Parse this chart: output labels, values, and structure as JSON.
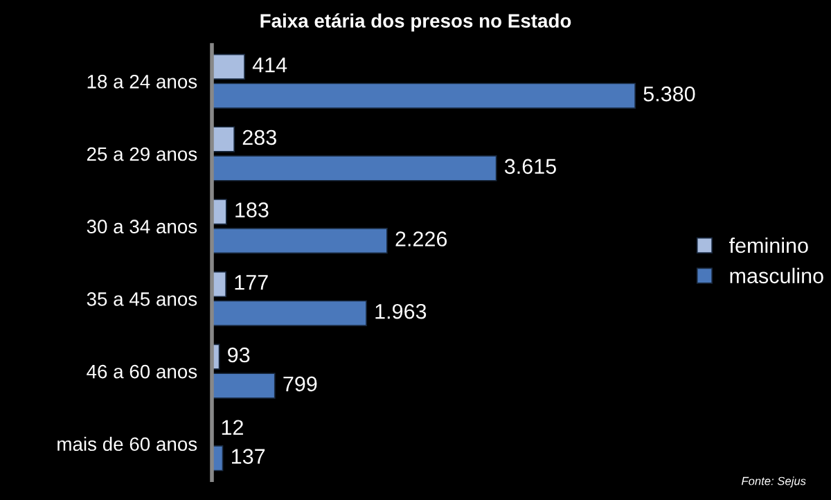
{
  "chart_data": {
    "type": "bar",
    "orientation": "horizontal",
    "title": "Faixa etária dos presos no Estado",
    "categories": [
      "18 a 24 anos",
      "25 a 29 anos",
      "30 a 34 anos",
      "35 a 45 anos",
      "46 a 60 anos",
      "mais de 60 anos"
    ],
    "series": [
      {
        "name": "feminino",
        "color": "#a9bde0",
        "values": [
          414,
          283,
          183,
          177,
          93,
          12
        ],
        "value_labels": [
          "414",
          "283",
          "183",
          "177",
          "93",
          "12"
        ]
      },
      {
        "name": "masculino",
        "color": "#4a78bb",
        "values": [
          5380,
          3615,
          2226,
          1963,
          799,
          137
        ],
        "value_labels": [
          "5.380",
          "3.615",
          "2.226",
          "1.963",
          "799",
          "137"
        ]
      }
    ],
    "tick_labels": "y",
    "grid": false,
    "legend": "right",
    "annotations": [
      "Fonte: Sejus"
    ]
  }
}
